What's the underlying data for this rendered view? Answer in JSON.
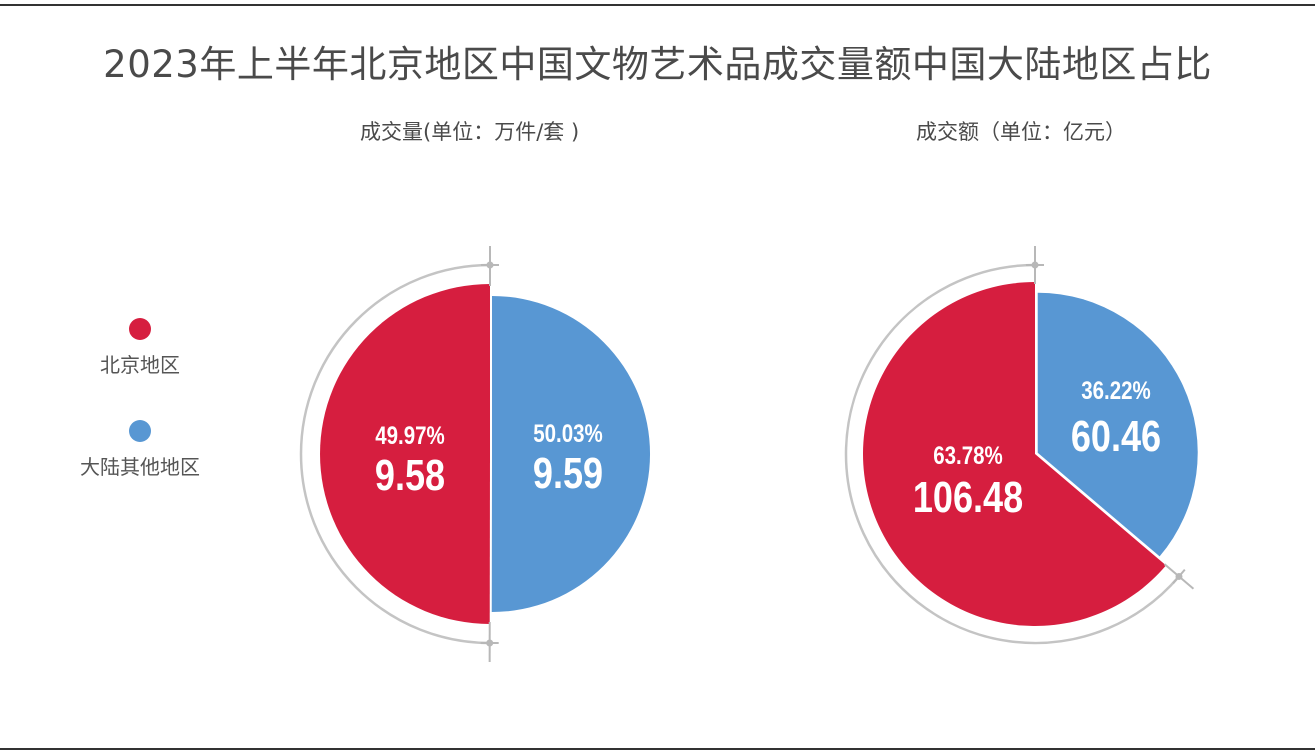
{
  "title": "2023年上半年北京地区中国文物艺术品成交量额中国大陆地区占比",
  "legend": [
    {
      "label": "北京地区",
      "color": "#d61e3f"
    },
    {
      "label": "大陆其他地区",
      "color": "#5897d3"
    }
  ],
  "chart_data": [
    {
      "type": "pie",
      "title": "成交量(单位：万件/套 )",
      "series": [
        {
          "name": "北京地区",
          "percent_label": "49.97%",
          "value": 9.58,
          "value_label": "9.58",
          "color": "#d61e3f"
        },
        {
          "name": "大陆其他地区",
          "percent_label": "50.03%",
          "value": 9.59,
          "value_label": "9.59",
          "color": "#5897d3"
        }
      ]
    },
    {
      "type": "pie",
      "title": "成交额（单位：亿元）",
      "series": [
        {
          "name": "北京地区",
          "percent_label": "63.78%",
          "value": 106.48,
          "value_label": "106.48",
          "color": "#d61e3f"
        },
        {
          "name": "大陆其他地区",
          "percent_label": "36.22%",
          "value": 60.46,
          "value_label": "60.46",
          "color": "#5897d3"
        }
      ]
    }
  ]
}
